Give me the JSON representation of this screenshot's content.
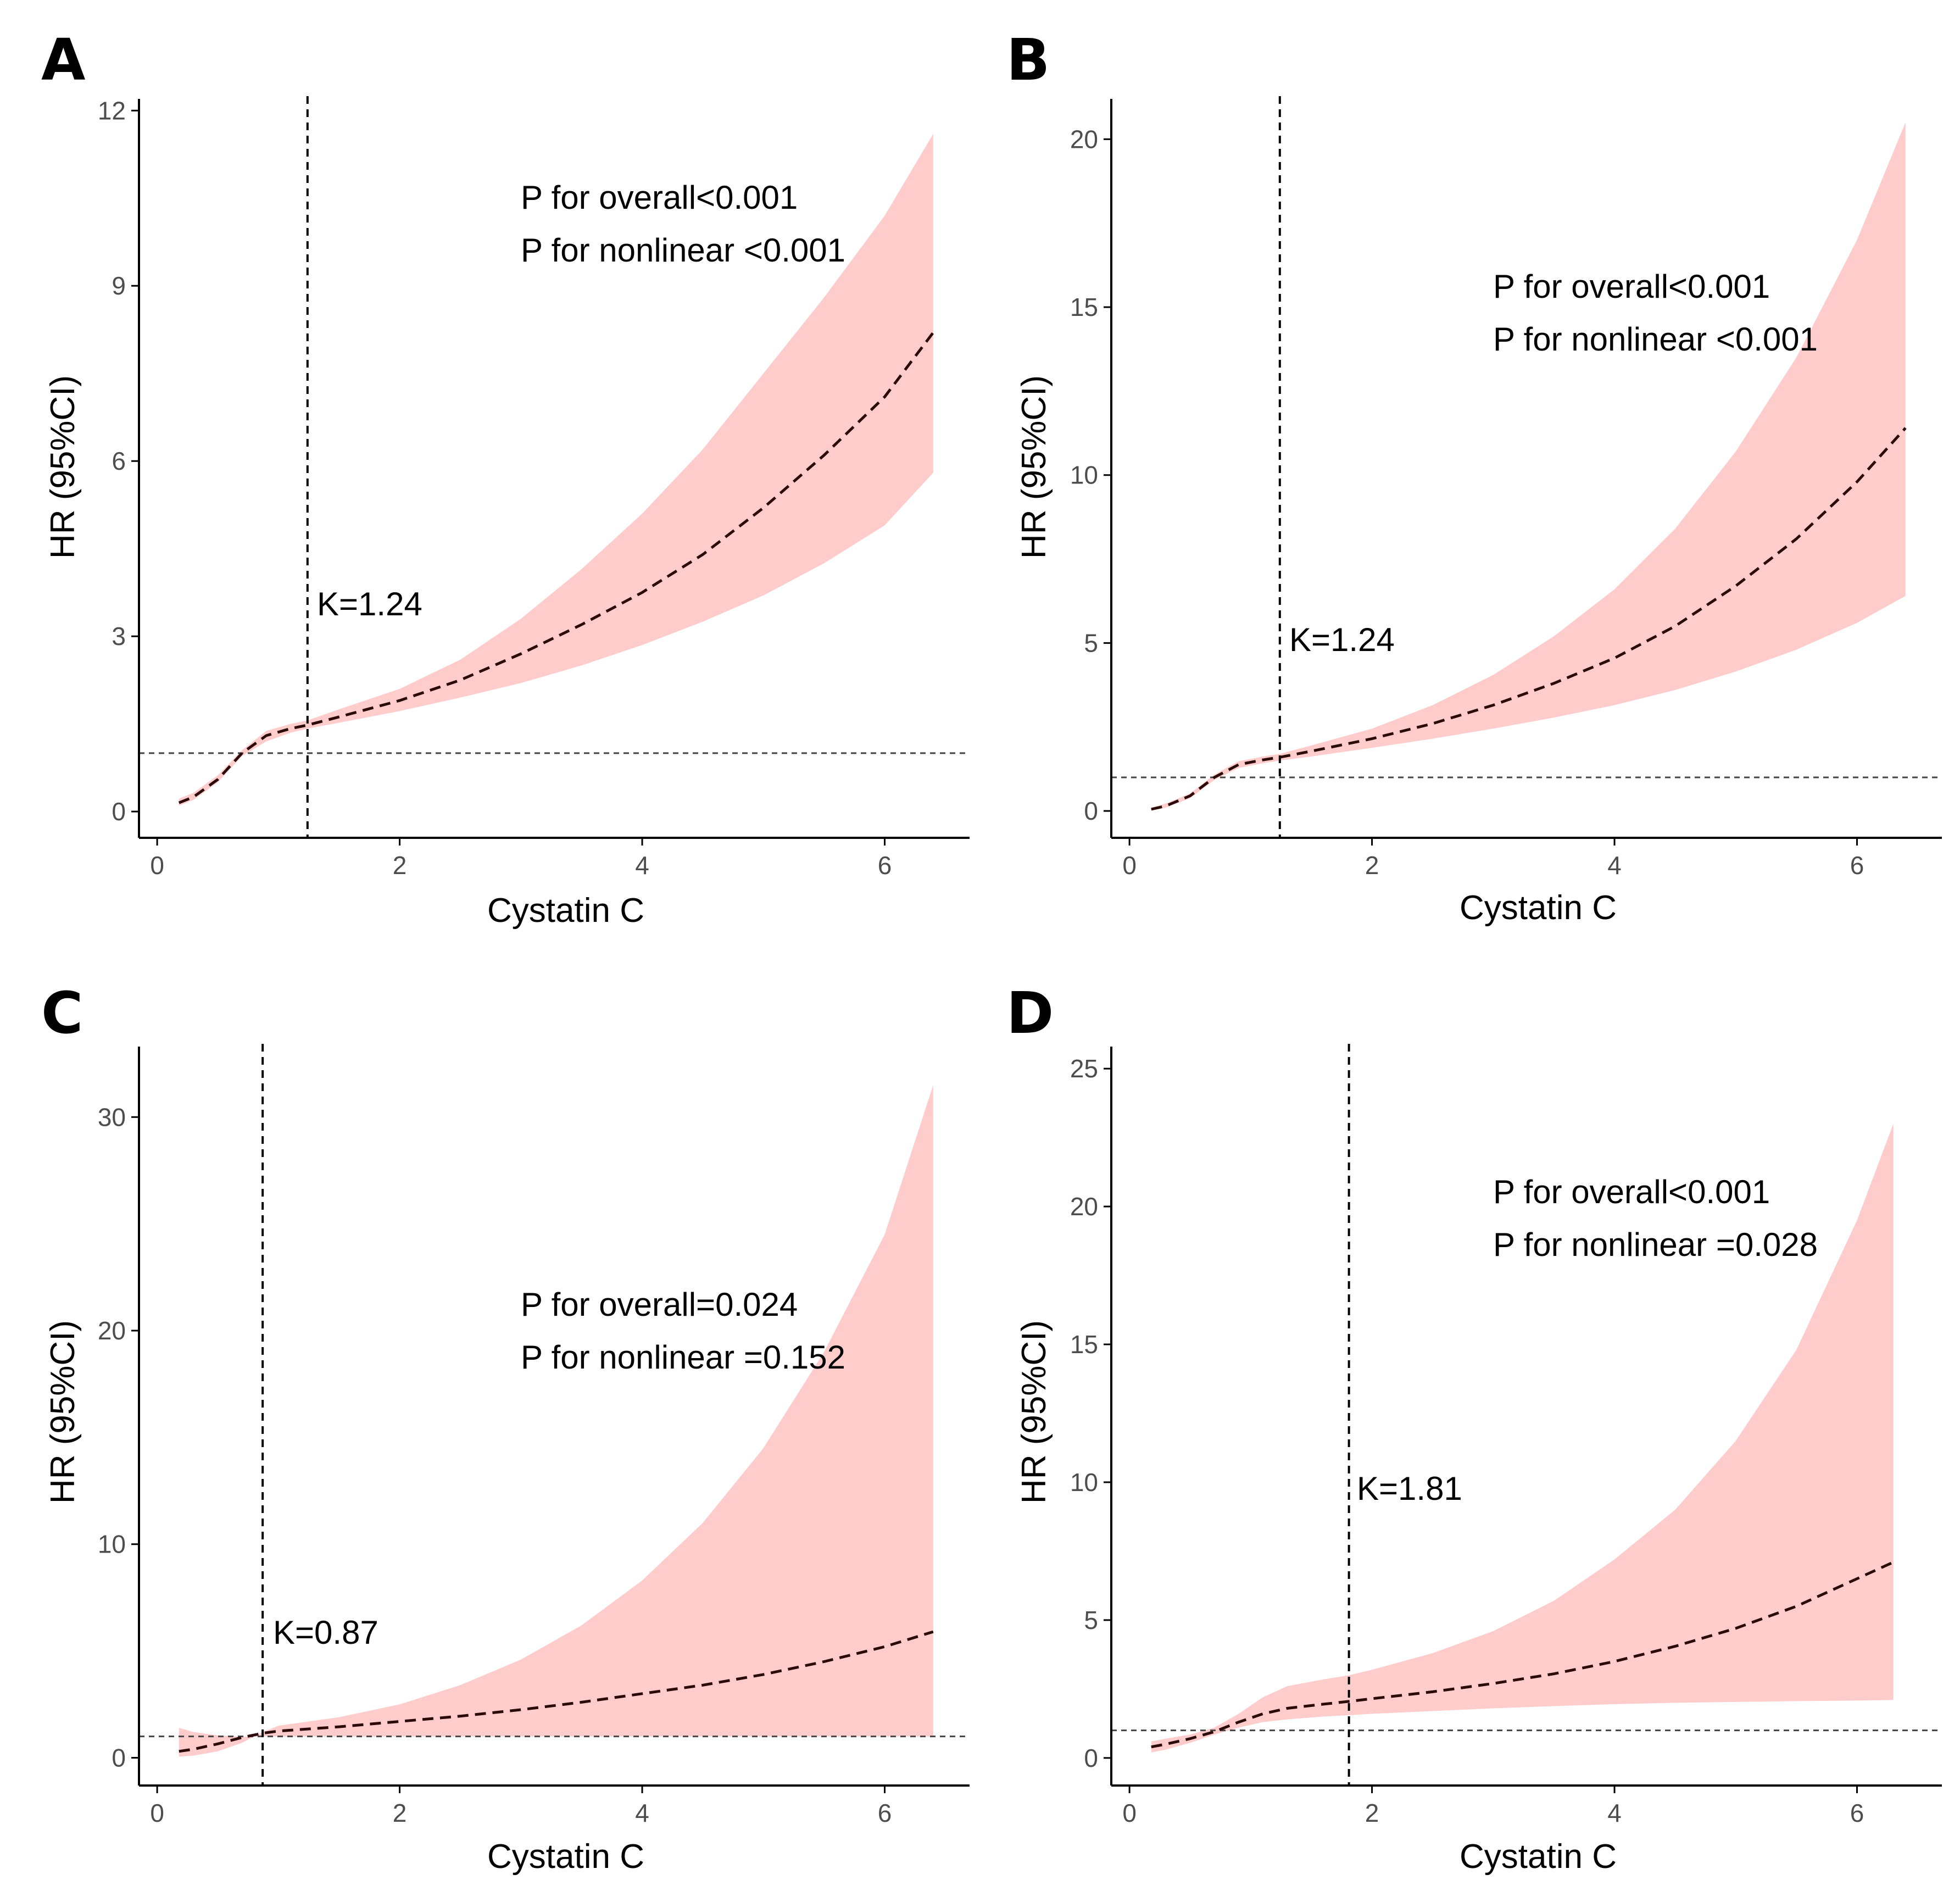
{
  "chart_data": [
    {
      "type": "line",
      "panel_label": "A",
      "xlabel": "Cystatin C",
      "ylabel": "HR (95%CI)",
      "xlim": [
        -0.15,
        6.7
      ],
      "ylim": [
        -0.45,
        12.2
      ],
      "xticks": [
        0,
        2,
        4,
        6
      ],
      "yticks": [
        0,
        3,
        6,
        9,
        12
      ],
      "reference_hr": 1,
      "knot": 1.24,
      "knot_label": "K=1.24",
      "annotations": [
        "P for overall<0.001",
        "P for nonlinear <0.001"
      ],
      "annotation_pos": [
        3.0,
        10.3
      ],
      "knot_label_y": 3.35,
      "series": [
        {
          "name": "HR",
          "x": [
            0.18,
            0.3,
            0.5,
            0.7,
            0.9,
            1.1,
            1.24,
            1.5,
            2.0,
            2.5,
            3.0,
            3.5,
            4.0,
            4.5,
            5.0,
            5.5,
            6.0,
            6.4
          ],
          "values": [
            0.15,
            0.25,
            0.55,
            1.0,
            1.3,
            1.42,
            1.48,
            1.62,
            1.9,
            2.25,
            2.7,
            3.2,
            3.75,
            4.4,
            5.2,
            6.1,
            7.1,
            8.2
          ]
        },
        {
          "name": "lower 95% CI",
          "values": [
            0.1,
            0.2,
            0.5,
            0.95,
            1.2,
            1.35,
            1.42,
            1.52,
            1.72,
            1.95,
            2.2,
            2.5,
            2.85,
            3.25,
            3.7,
            4.25,
            4.9,
            5.8
          ]
        },
        {
          "name": "upper 95% CI",
          "values": [
            0.22,
            0.32,
            0.62,
            1.05,
            1.38,
            1.5,
            1.56,
            1.75,
            2.1,
            2.6,
            3.3,
            4.15,
            5.1,
            6.2,
            7.5,
            8.8,
            10.2,
            11.6
          ]
        }
      ]
    },
    {
      "type": "line",
      "panel_label": "B",
      "xlabel": "Cystatin C",
      "ylabel": "HR (95%CI)",
      "xlim": [
        -0.15,
        6.7
      ],
      "ylim": [
        -0.8,
        21.2
      ],
      "xticks": [
        0,
        2,
        4,
        6
      ],
      "yticks": [
        0,
        5,
        10,
        15,
        20
      ],
      "reference_hr": 1,
      "knot": 1.24,
      "knot_label": "K=1.24",
      "annotations": [
        "P for overall<0.001",
        "P for nonlinear <0.001"
      ],
      "annotation_pos": [
        3.0,
        15.5
      ],
      "knot_label_y": 4.4,
      "series": [
        {
          "name": "HR",
          "x": [
            0.18,
            0.3,
            0.5,
            0.7,
            0.9,
            1.1,
            1.24,
            1.5,
            2.0,
            2.5,
            3.0,
            3.5,
            4.0,
            4.5,
            5.0,
            5.5,
            6.0,
            6.4
          ],
          "values": [
            0.05,
            0.15,
            0.45,
            1.0,
            1.38,
            1.52,
            1.6,
            1.78,
            2.15,
            2.6,
            3.15,
            3.8,
            4.55,
            5.5,
            6.7,
            8.1,
            9.8,
            11.4
          ]
        },
        {
          "name": "lower 95% CI",
          "values": [
            0.02,
            0.1,
            0.38,
            0.92,
            1.28,
            1.42,
            1.5,
            1.62,
            1.88,
            2.15,
            2.45,
            2.78,
            3.15,
            3.6,
            4.15,
            4.8,
            5.6,
            6.4
          ]
        },
        {
          "name": "upper 95% CI",
          "values": [
            0.1,
            0.22,
            0.52,
            1.08,
            1.48,
            1.62,
            1.7,
            1.95,
            2.45,
            3.15,
            4.05,
            5.2,
            6.6,
            8.4,
            10.7,
            13.5,
            17.0,
            20.5
          ]
        }
      ]
    },
    {
      "type": "line",
      "panel_label": "C",
      "xlabel": "Cystatin C",
      "ylabel": "HR (95%CI)",
      "xlim": [
        -0.15,
        6.7
      ],
      "ylim": [
        -1.3,
        33.3
      ],
      "xticks": [
        0,
        2,
        4,
        6
      ],
      "yticks": [
        0,
        10,
        20,
        30
      ],
      "reference_hr": 1,
      "knot": 0.87,
      "knot_label": "K=0.87",
      "annotations": [
        "P for overall=0.024",
        "P for nonlinear =0.152"
      ],
      "annotation_pos": [
        3.0,
        20.7
      ],
      "knot_label_y": 5.2,
      "series": [
        {
          "name": "HR",
          "x": [
            0.18,
            0.3,
            0.5,
            0.7,
            0.87,
            1.0,
            1.5,
            2.0,
            2.5,
            3.0,
            3.5,
            4.0,
            4.5,
            5.0,
            5.5,
            6.0,
            6.4
          ],
          "values": [
            0.3,
            0.4,
            0.65,
            0.95,
            1.15,
            1.25,
            1.45,
            1.7,
            1.95,
            2.25,
            2.6,
            3.0,
            3.4,
            3.9,
            4.5,
            5.2,
            5.9
          ]
        },
        {
          "name": "lower 95% CI",
          "values": [
            1.4,
            1.2,
            1.05,
            0.98,
            1.0,
            1.0,
            1.0,
            1.0,
            1.0,
            1.0,
            1.0,
            1.0,
            1.0,
            1.0,
            1.0,
            1.0,
            1.0
          ]
        },
        {
          "name": "upper 95% CI",
          "values": [
            0.05,
            0.1,
            0.3,
            0.7,
            1.2,
            1.5,
            1.9,
            2.5,
            3.4,
            4.6,
            6.2,
            8.3,
            11.0,
            14.5,
            19.0,
            24.5,
            31.5
          ]
        }
      ]
    },
    {
      "type": "line",
      "panel_label": "D",
      "xlabel": "Cystatin C",
      "ylabel": "HR (95%CI)",
      "xlim": [
        -0.15,
        6.7
      ],
      "ylim": [
        -1.0,
        25.8
      ],
      "xticks": [
        0,
        2,
        4,
        6
      ],
      "yticks": [
        0,
        5,
        10,
        15,
        20,
        25
      ],
      "reference_hr": 1,
      "knot": 1.81,
      "knot_label": "K=1.81",
      "annotations": [
        "P for overall<0.001",
        "P for nonlinear =0.028"
      ],
      "annotation_pos": [
        3.0,
        19.7
      ],
      "knot_label_y": 9.3,
      "series": [
        {
          "name": "HR",
          "x": [
            0.18,
            0.3,
            0.5,
            0.7,
            0.9,
            1.1,
            1.3,
            1.6,
            1.81,
            2.0,
            2.5,
            3.0,
            3.5,
            4.0,
            4.5,
            5.0,
            5.5,
            6.0,
            6.3
          ],
          "values": [
            0.4,
            0.5,
            0.7,
            0.95,
            1.3,
            1.6,
            1.8,
            1.95,
            2.05,
            2.15,
            2.4,
            2.7,
            3.05,
            3.5,
            4.05,
            4.7,
            5.5,
            6.5,
            7.1
          ]
        },
        {
          "name": "lower 95% CI",
          "values": [
            0.2,
            0.3,
            0.55,
            0.85,
            1.1,
            1.3,
            1.4,
            1.5,
            1.55,
            1.6,
            1.7,
            1.8,
            1.88,
            1.95,
            2.0,
            2.03,
            2.06,
            2.08,
            2.1
          ]
        },
        {
          "name": "upper 95% CI",
          "values": [
            0.6,
            0.7,
            0.85,
            1.1,
            1.6,
            2.2,
            2.6,
            2.85,
            3.0,
            3.2,
            3.8,
            4.6,
            5.7,
            7.2,
            9.0,
            11.5,
            14.8,
            19.5,
            23.0
          ]
        }
      ]
    }
  ],
  "colors": {
    "ci_band": "#ffcccc",
    "curve": "#2b0a0a",
    "axis": "#000000",
    "reference": "#444444",
    "tick_label": "#4d4d4d"
  }
}
